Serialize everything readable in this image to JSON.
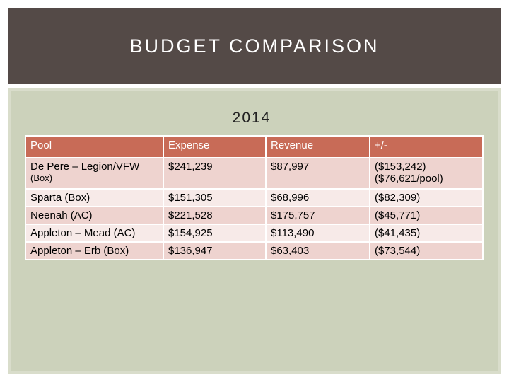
{
  "slide": {
    "title": "BUDGET COMPARISON",
    "subtitle": "2014"
  },
  "table": {
    "headers": [
      "Pool",
      "Expense",
      "Revenue",
      "+/-"
    ],
    "rows": [
      {
        "pool_line1": "De Pere – Legion/VFW",
        "pool_line2": "(Box)",
        "expense": "$241,239",
        "revenue": "$87,997",
        "diff_line1": "($153,242)",
        "diff_line2": "($76,621/pool)"
      },
      {
        "pool": "Sparta (Box)",
        "expense": "$151,305",
        "revenue": "$68,996",
        "diff": "($82,309)"
      },
      {
        "pool": "Neenah (AC)",
        "expense": "$221,528",
        "revenue": "$175,757",
        "diff": "($45,771)"
      },
      {
        "pool": "Appleton – Mead (AC)",
        "expense": "$154,925",
        "revenue": "$113,490",
        "diff": "($41,435)"
      },
      {
        "pool": "Appleton – Erb (Box)",
        "expense": "$136,947",
        "revenue": "$63,403",
        "diff": "($73,544)"
      }
    ]
  },
  "colors": {
    "title_bar": "#544a47",
    "panel": "#ccd2bb",
    "header_row": "#c86b57",
    "row_dark": "#eed3cf",
    "row_light": "#f7eae8"
  }
}
